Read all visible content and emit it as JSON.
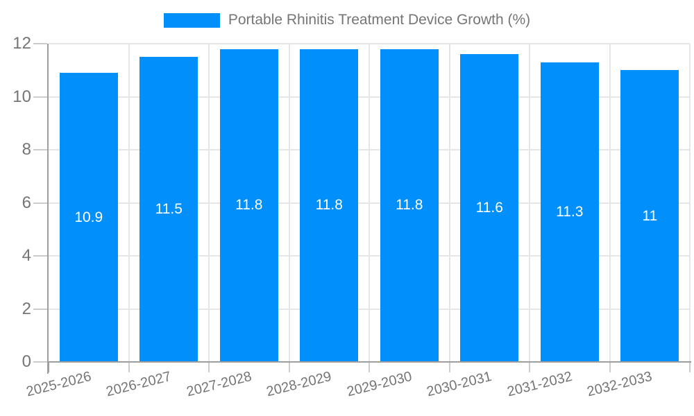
{
  "legend": {
    "label": "Portable Rhinitis Treatment Device Growth (%)"
  },
  "chart_data": {
    "type": "bar",
    "title": "Portable Rhinitis Treatment Device Growth (%)",
    "categories": [
      "2025-2026",
      "2026-2027",
      "2027-2028",
      "2028-2029",
      "2029-2030",
      "2030-2031",
      "2031-2032",
      "2032-2033"
    ],
    "values": [
      10.9,
      11.5,
      11.8,
      11.8,
      11.8,
      11.6,
      11.3,
      11
    ],
    "value_labels": [
      "10.9",
      "11.5",
      "11.8",
      "11.8",
      "11.8",
      "11.6",
      "11.3",
      "11"
    ],
    "yticks": [
      0,
      2,
      4,
      6,
      8,
      10,
      12
    ],
    "ylim": [
      0,
      12
    ],
    "xlabel": "",
    "ylabel": "",
    "grid": true,
    "legend_position": "top",
    "x_label_rotation_deg": -14,
    "colors": {
      "bar": "#008FFB",
      "axis": "#9e9e9e",
      "grid": "#e6e6e6",
      "tick": "#cccccc",
      "text": "#757575",
      "value_label": "#ffffff",
      "background": "#ffffff"
    }
  }
}
